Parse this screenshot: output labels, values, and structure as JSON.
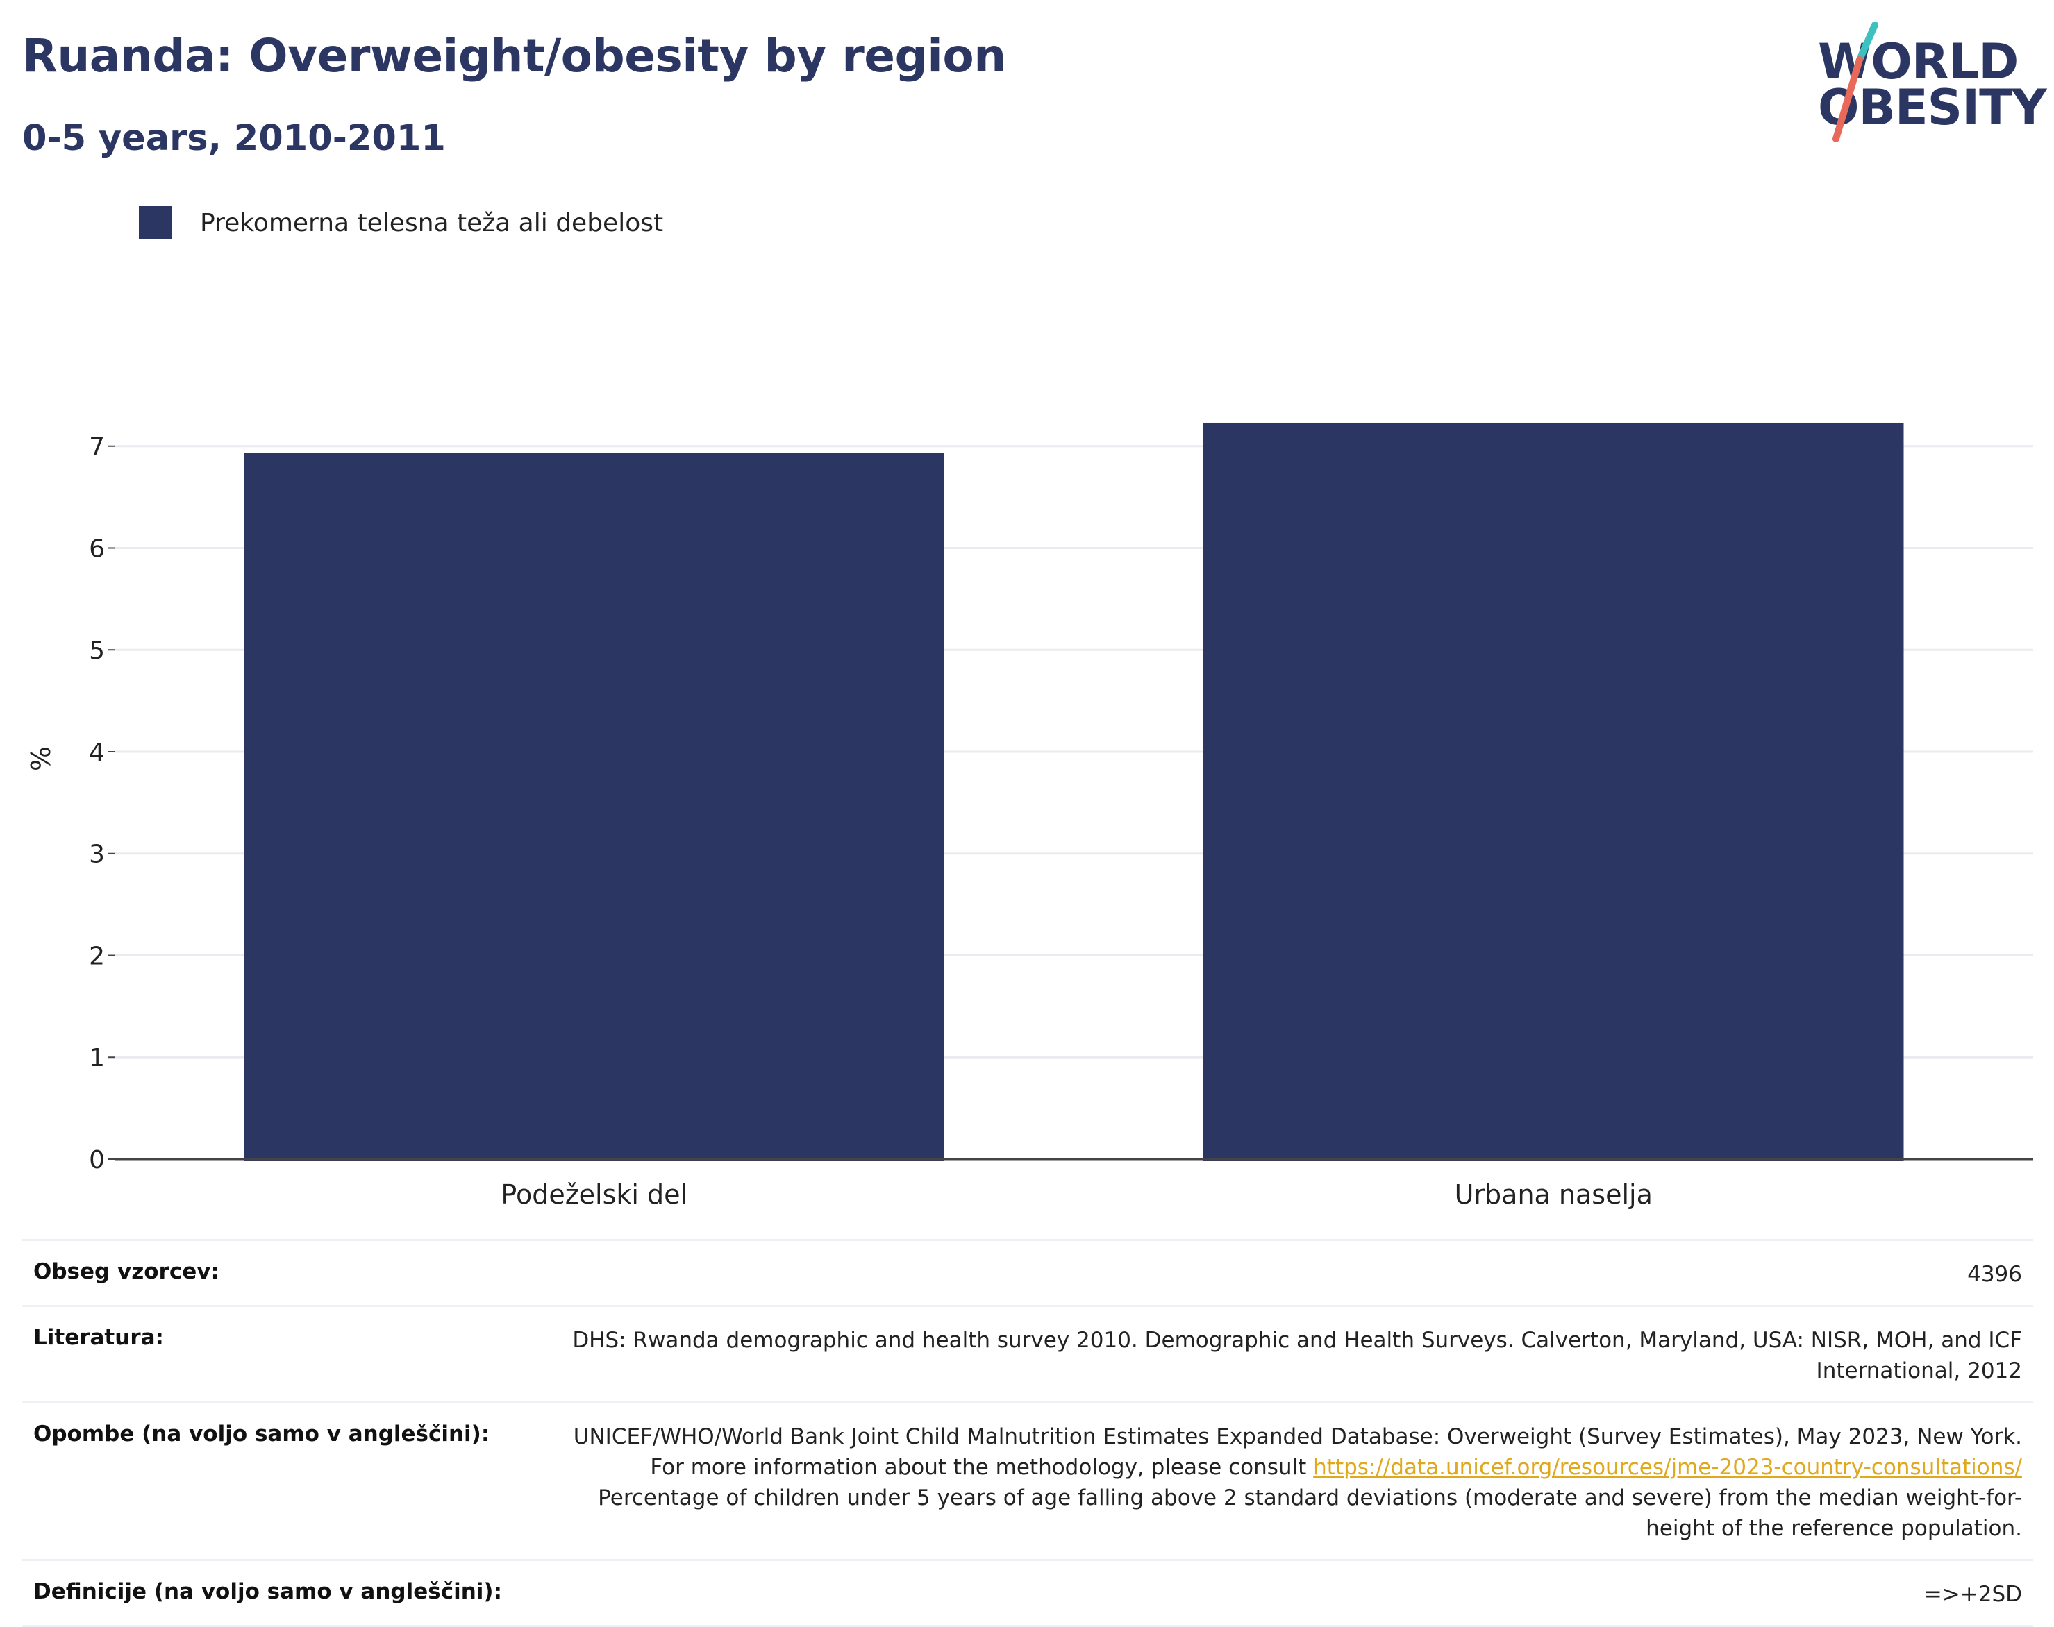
{
  "header": {
    "title": "Ruanda: Overweight/obesity by region",
    "subtitle": "0-5 years, 2010-2011"
  },
  "logo": {
    "line1": "WORLD",
    "line2": "OBESITY",
    "colors": {
      "navy": "#2b3663",
      "teal": "#3cc0c0",
      "coral": "#e8685a"
    }
  },
  "legend": {
    "items": [
      {
        "label": "Prekomerna telesna teža ali debelost",
        "color": "#2b3663"
      }
    ]
  },
  "chart_data": {
    "type": "bar",
    "categories": [
      "Podeželski del",
      "Urbana naselja"
    ],
    "series": [
      {
        "name": "Prekomerna telesna teža ali debelost",
        "values": [
          6.93,
          7.23
        ],
        "color": "#2b3663"
      }
    ],
    "ylabel": "%",
    "ylim": [
      0,
      7.7
    ],
    "yticks": [
      0,
      1,
      2,
      3,
      4,
      5,
      6,
      7
    ],
    "grid": true,
    "legend_position": "top-left"
  },
  "metadata": [
    {
      "key": "Obseg vzorcev:",
      "value": "4396"
    },
    {
      "key": "Literatura:",
      "value": "DHS: Rwanda demographic and health survey 2010. Demographic and Health Surveys. Calverton, Maryland, USA: NISR, MOH, and ICF International, 2012"
    },
    {
      "key": "Opombe (na voljo samo v angleščini):",
      "value_before": "UNICEF/WHO/World Bank Joint Child Malnutrition Estimates Expanded Database: Overweight (Survey Estimates), May 2023, New York. For more information about the methodology, please consult ",
      "link": "https://data.unicef.org/resources/jme-2023-country-consultations/",
      "value_after": " Percentage of children under 5 years of age falling above 2 standard deviations (moderate and severe) from the median weight-for-height of the reference population."
    },
    {
      "key": "Definicije (na voljo samo v angleščini):",
      "value": "=>+2SD"
    }
  ]
}
